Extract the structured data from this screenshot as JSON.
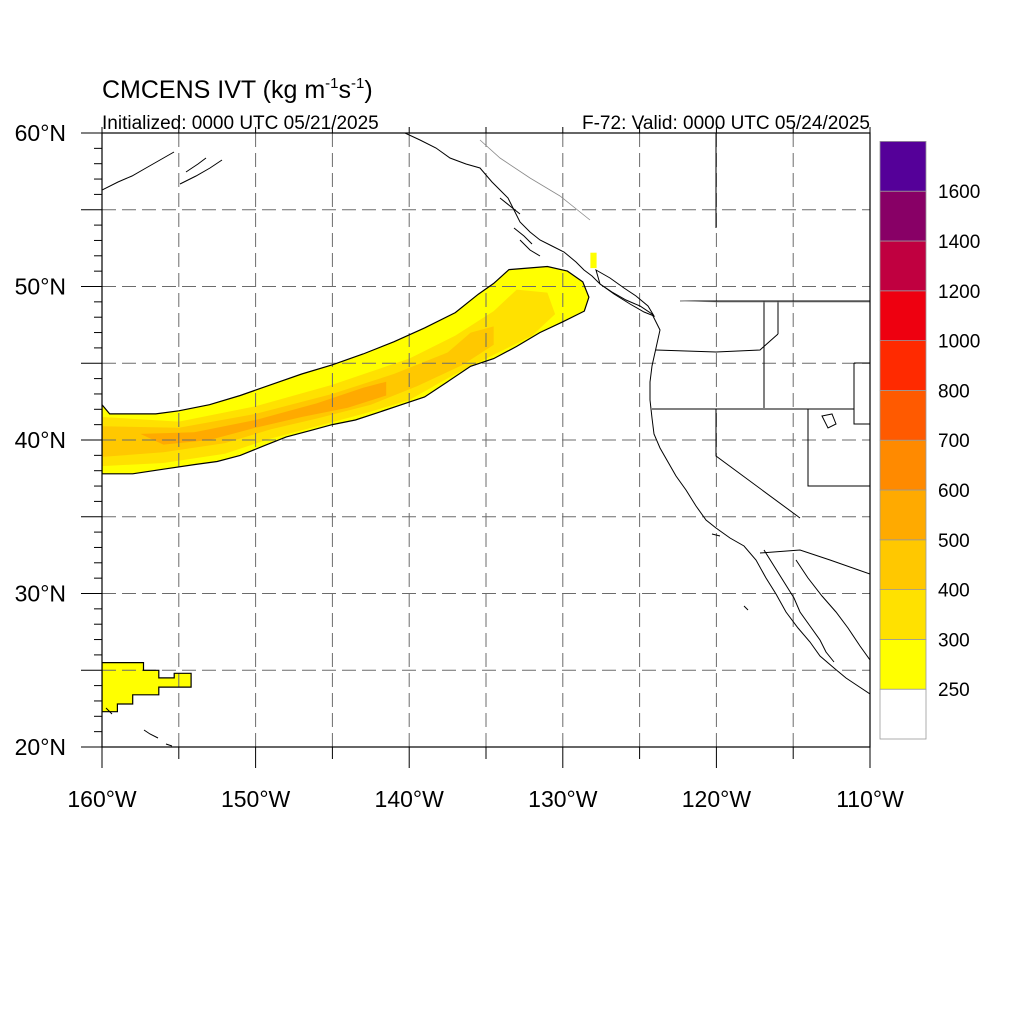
{
  "header": {
    "title_main": "CMCENS IVT (kg m",
    "title_sup1": "-1",
    "title_mid": "s",
    "title_sup2": "-1",
    "title_end": ")",
    "initialized": "Initialized: 0000 UTC 05/21/2025",
    "valid": "F-72: Valid: 0000 UTC 05/24/2025"
  },
  "chart_data": {
    "type": "heatmap",
    "variable": "IVT",
    "units": "kg m-1 s-1",
    "projection": "cylindrical equidistant",
    "lon_range": [
      -160,
      -110
    ],
    "lat_range": [
      20,
      60
    ],
    "grid": true,
    "x_ticks": [
      {
        "value": -160,
        "label": "160°W"
      },
      {
        "value": -150,
        "label": "150°W"
      },
      {
        "value": -140,
        "label": "140°W"
      },
      {
        "value": -130,
        "label": "130°W"
      },
      {
        "value": -120,
        "label": "120°W"
      },
      {
        "value": -110,
        "label": "110°W"
      }
    ],
    "y_ticks": [
      {
        "value": 60,
        "label": "60°N"
      },
      {
        "value": 50,
        "label": "50°N"
      },
      {
        "value": 40,
        "label": "40°N"
      },
      {
        "value": 30,
        "label": "30°N"
      },
      {
        "value": 20,
        "label": "20°N"
      }
    ],
    "colorbar": {
      "placement": "right",
      "levels": [
        250,
        300,
        400,
        500,
        600,
        700,
        800,
        1000,
        1200,
        1400,
        1600
      ],
      "labels": [
        "250",
        "300",
        "400",
        "500",
        "600",
        "700",
        "800",
        "1000",
        "1200",
        "1400",
        "1600"
      ],
      "colors": [
        "#ffffff",
        "#ffff00",
        "#ffe100",
        "#ffc800",
        "#ffaa00",
        "#ff8a00",
        "#ff5a00",
        "#ff2a00",
        "#ee0010",
        "#c00040",
        "#880066",
        "#550099"
      ]
    },
    "features": [
      {
        "name": "atmospheric-river",
        "min_ivt": 250,
        "boundary": [
          [
            -160,
            42.3
          ],
          [
            -159.5,
            41.7
          ],
          [
            -156.5,
            41.7
          ],
          [
            -155,
            41.9
          ],
          [
            -153,
            42.3
          ],
          [
            -151,
            42.9
          ],
          [
            -149,
            43.6
          ],
          [
            -147,
            44.3
          ],
          [
            -145,
            44.9
          ],
          [
            -143,
            45.6
          ],
          [
            -141,
            46.4
          ],
          [
            -139,
            47.3
          ],
          [
            -137,
            48.3
          ],
          [
            -135.5,
            49.5
          ],
          [
            -134.5,
            50.2
          ],
          [
            -133.5,
            51.1
          ],
          [
            -131,
            51.3
          ],
          [
            -129.7,
            51.0
          ],
          [
            -128.7,
            50.3
          ],
          [
            -128.3,
            49.3
          ],
          [
            -128.6,
            48.4
          ],
          [
            -130,
            47.7
          ],
          [
            -131.5,
            47.0
          ],
          [
            -133,
            46.1
          ],
          [
            -134.5,
            45.3
          ],
          [
            -136,
            44.8
          ],
          [
            -137.5,
            43.8
          ],
          [
            -139,
            42.8
          ],
          [
            -140.5,
            42.3
          ],
          [
            -142,
            41.8
          ],
          [
            -143.5,
            41.3
          ],
          [
            -145,
            41.0
          ],
          [
            -146.5,
            40.6
          ],
          [
            -148,
            40.2
          ],
          [
            -149.5,
            39.6
          ],
          [
            -151,
            39.0
          ],
          [
            -152.5,
            38.6
          ],
          [
            -154,
            38.4
          ],
          [
            -156,
            38.1
          ],
          [
            -158,
            37.8
          ],
          [
            -160,
            37.8
          ]
        ],
        "cores": [
          {
            "level": 300,
            "ring": [
              [
                -160,
                41.5
              ],
              [
                -155,
                41.2
              ],
              [
                -150,
                42.2
              ],
              [
                -145,
                43.6
              ],
              [
                -140,
                45.3
              ],
              [
                -137,
                46.8
              ],
              [
                -134.5,
                48.4
              ],
              [
                -133,
                49.8
              ],
              [
                -131,
                49.6
              ],
              [
                -130.5,
                48.2
              ],
              [
                -132,
                46.8
              ],
              [
                -134,
                45.8
              ],
              [
                -137,
                44.3
              ],
              [
                -140,
                42.6
              ],
              [
                -143,
                41.7
              ],
              [
                -146,
                40.9
              ],
              [
                -149,
                40.1
              ],
              [
                -152,
                39.1
              ],
              [
                -156,
                38.5
              ],
              [
                -160,
                38.3
              ]
            ]
          },
          {
            "level": 400,
            "ring": [
              [
                -160,
                40.9
              ],
              [
                -155,
                40.8
              ],
              [
                -150,
                41.7
              ],
              [
                -145,
                43.0
              ],
              [
                -141,
                44.3
              ],
              [
                -137.5,
                45.7
              ],
              [
                -136,
                47.0
              ],
              [
                -134.5,
                47.4
              ],
              [
                -134.5,
                46.2
              ],
              [
                -136.5,
                44.9
              ],
              [
                -139.5,
                43.5
              ],
              [
                -142.5,
                42.3
              ],
              [
                -146,
                41.4
              ],
              [
                -149,
                40.7
              ],
              [
                -152,
                39.8
              ],
              [
                -156,
                39.2
              ],
              [
                -160,
                38.9
              ]
            ]
          },
          {
            "level": 500,
            "ring": [
              [
                -157.5,
                40.4
              ],
              [
                -154,
                40.5
              ],
              [
                -150,
                41.3
              ],
              [
                -146,
                42.4
              ],
              [
                -143,
                43.4
              ],
              [
                -141.5,
                43.8
              ],
              [
                -141.5,
                42.9
              ],
              [
                -144,
                42.1
              ],
              [
                -147,
                41.5
              ],
              [
                -150,
                40.8
              ],
              [
                -153,
                40.0
              ],
              [
                -156,
                39.7
              ]
            ]
          }
        ]
      },
      {
        "name": "subtropical-patch",
        "min_ivt": 250,
        "boundary": [
          [
            -160,
            25.5
          ],
          [
            -157.3,
            25.5
          ],
          [
            -157.3,
            25.0
          ],
          [
            -156.3,
            25.0
          ],
          [
            -156.3,
            24.5
          ],
          [
            -155.3,
            24.5
          ],
          [
            -155.3,
            24.8
          ],
          [
            -154.2,
            24.8
          ],
          [
            -154.2,
            23.9
          ],
          [
            -156.3,
            23.9
          ],
          [
            -156.3,
            23.4
          ],
          [
            -158,
            23.4
          ],
          [
            -158,
            22.8
          ],
          [
            -159,
            22.8
          ],
          [
            -159,
            22.3
          ],
          [
            -160,
            22.3
          ]
        ]
      },
      {
        "name": "small-patch",
        "min_ivt": 250,
        "boundary": [
          [
            -128.2,
            52.2
          ],
          [
            -127.8,
            52.2
          ],
          [
            -127.8,
            51.2
          ],
          [
            -128.2,
            51.2
          ]
        ]
      }
    ]
  }
}
